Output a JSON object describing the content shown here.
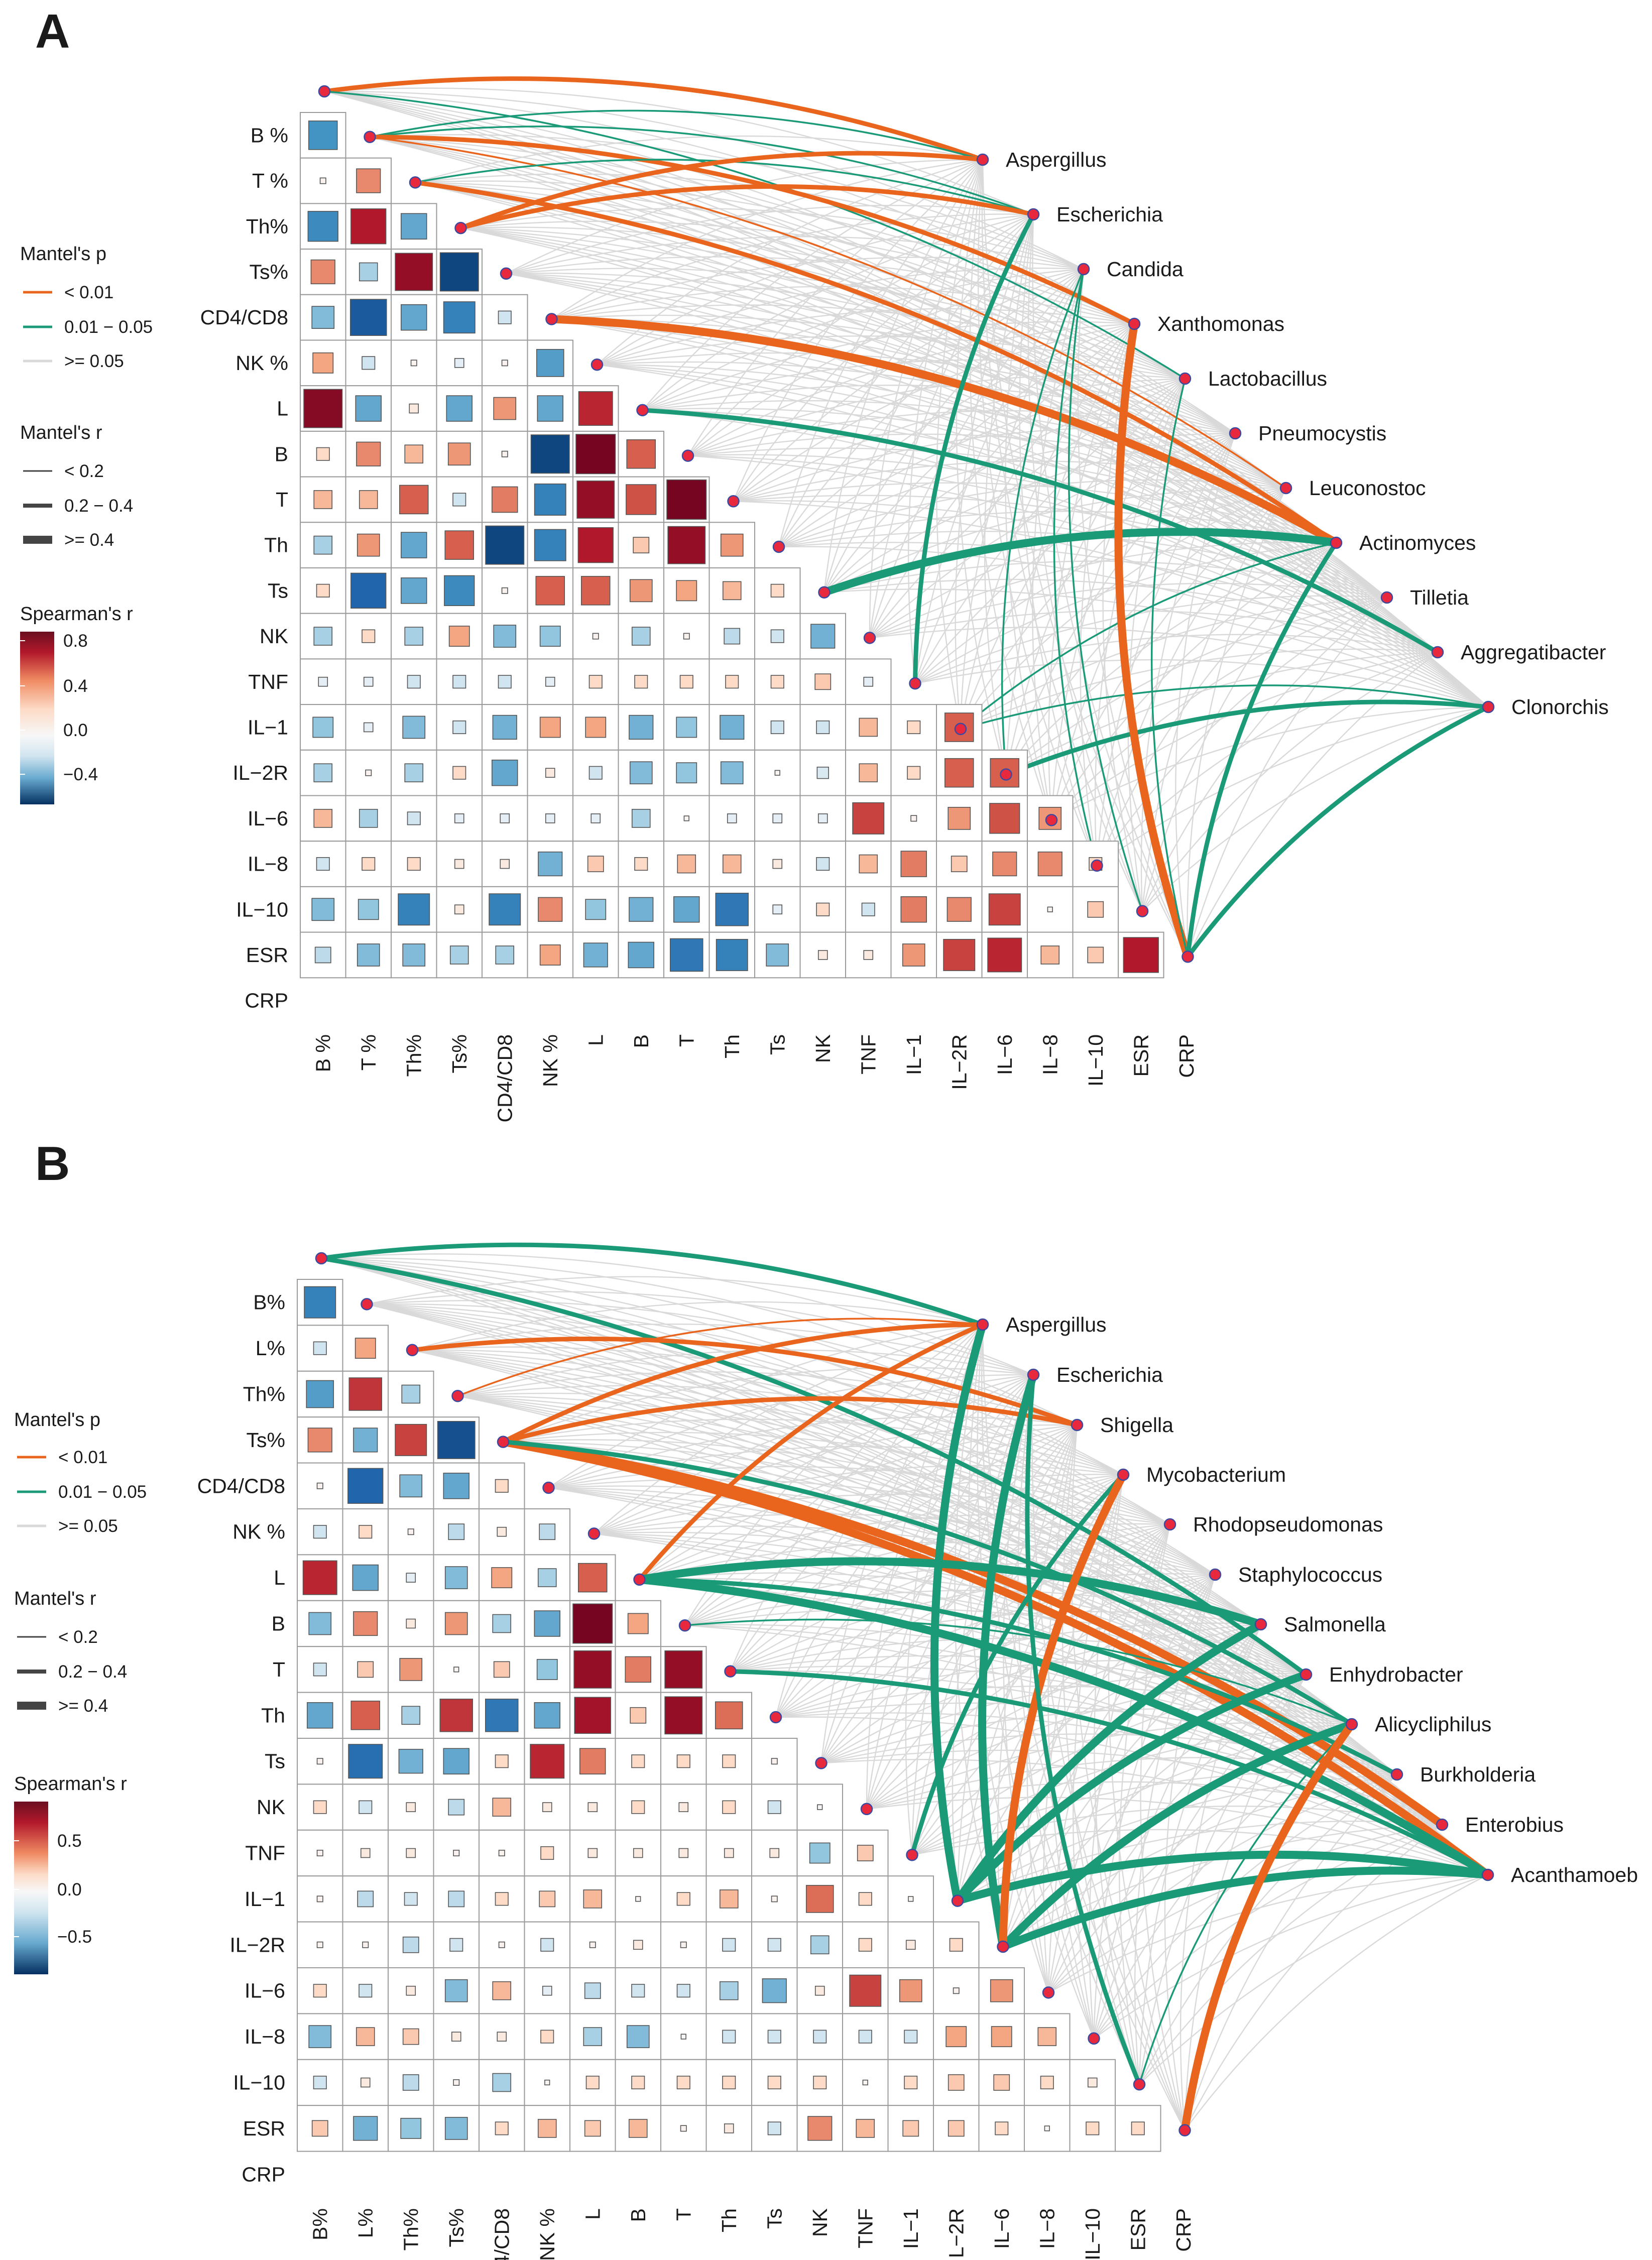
{
  "chart_data": [
    {
      "type": "heatmap",
      "panel": "A",
      "variables": [
        "B %",
        "T %",
        "Th%",
        "Ts%",
        "CD4/CD8",
        "NK %",
        "L",
        "B",
        "T",
        "Th",
        "Ts",
        "NK",
        "TNF",
        "IL−1",
        "IL−2R",
        "IL−6",
        "IL−8",
        "IL−10",
        "ESR",
        "CRP"
      ],
      "taxa": [
        "Aspergillus",
        "Escherichia",
        "Candida",
        "Xanthomonas",
        "Lactobacillus",
        "Pneumocystis",
        "Leuconostoc",
        "Actinomyces",
        "Tilletia",
        "Aggregatibacter",
        "Clonorchis"
      ],
      "color_scale": {
        "title": "Spearman's r",
        "ticks": [
          0.8,
          0.4,
          0.0,
          -0.4
        ],
        "tick_labels": [
          "0.8",
          "0.4",
          "0.0",
          "−0.4"
        ],
        "range": [
          -0.55,
          0.85
        ]
      },
      "correlation_matrix": [
        [
          -0.5
        ],
        [
          0.02,
          0.35
        ],
        [
          -0.55,
          0.75,
          -0.4
        ],
        [
          0.35,
          -0.2,
          0.85,
          -0.9
        ],
        [
          -0.3,
          -0.8,
          -0.4,
          -0.6,
          -0.1
        ],
        [
          0.25,
          -0.1,
          0.02,
          -0.05,
          0.02,
          -0.45
        ],
        [
          0.9,
          -0.4,
          0.05,
          -0.4,
          0.3,
          -0.4,
          0.7
        ],
        [
          0.1,
          0.35,
          0.2,
          0.3,
          0.02,
          -0.9,
          0.95,
          0.5
        ],
        [
          0.2,
          0.2,
          0.5,
          -0.1,
          0.4,
          -0.6,
          0.85,
          0.55,
          0.95
        ],
        [
          -0.2,
          0.3,
          -0.4,
          0.5,
          -0.9,
          -0.6,
          0.75,
          0.15,
          0.85,
          0.3
        ],
        [
          0.1,
          -0.75,
          -0.4,
          -0.55,
          0.02,
          0.5,
          0.5,
          0.3,
          0.25,
          0.2,
          0.1
        ],
        [
          -0.2,
          0.1,
          -0.2,
          0.25,
          -0.3,
          -0.25,
          0.02,
          -0.2,
          0.02,
          -0.15,
          -0.1,
          -0.35
        ],
        [
          -0.05,
          -0.05,
          -0.1,
          -0.1,
          -0.1,
          -0.05,
          0.1,
          0.1,
          0.1,
          0.1,
          0.1,
          0.15,
          -0.05
        ],
        [
          -0.25,
          -0.05,
          -0.3,
          -0.1,
          -0.35,
          0.25,
          0.25,
          -0.35,
          -0.25,
          -0.35,
          -0.1,
          -0.1,
          0.2,
          0.1,
          0.5
        ],
        [
          -0.2,
          0.02,
          -0.2,
          0.1,
          -0.4,
          0.05,
          -0.1,
          -0.3,
          -0.25,
          -0.3,
          0.01,
          -0.08,
          0.2,
          0.1,
          0.5,
          0.5
        ],
        [
          0.2,
          -0.2,
          -0.1,
          -0.05,
          -0.05,
          -0.05,
          -0.05,
          -0.2,
          0.01,
          -0.05,
          -0.05,
          -0.05,
          0.6,
          0.02,
          0.3,
          0.55,
          0.3
        ],
        [
          -0.1,
          0.1,
          0.1,
          0.05,
          0.05,
          -0.35,
          0.15,
          0.1,
          0.2,
          0.2,
          0.05,
          -0.1,
          0.2,
          0.4,
          0.15,
          0.35,
          0.35,
          0.1
        ],
        [
          -0.3,
          -0.25,
          -0.6,
          0.05,
          -0.6,
          0.35,
          -0.25,
          -0.35,
          -0.4,
          -0.65,
          -0.05,
          0.1,
          -0.1,
          0.4,
          0.35,
          0.6,
          0.01,
          0.15
        ],
        [
          -0.15,
          -0.3,
          -0.3,
          -0.2,
          -0.2,
          0.25,
          -0.35,
          -0.4,
          -0.65,
          -0.6,
          -0.3,
          0.05,
          0.05,
          0.3,
          0.6,
          0.7,
          0.2,
          0.15,
          0.75
        ]
      ],
      "edges": [
        {
          "variable": "B %",
          "taxon": "Aspergillus",
          "p": "<0.01",
          "r": "0.2-0.4"
        },
        {
          "variable": "B %",
          "taxon": "Lactobacillus",
          "p": "0.01-0.05",
          "r": "<0.2"
        },
        {
          "variable": "T %",
          "taxon": "Aspergillus",
          "p": "0.01-0.05",
          "r": "<0.2"
        },
        {
          "variable": "T %",
          "taxon": "Escherichia",
          "p": "0.01-0.05",
          "r": "<0.2"
        },
        {
          "variable": "T %",
          "taxon": "Xanthomonas",
          "p": "<0.01",
          "r": "0.2-0.4"
        },
        {
          "variable": "T %",
          "taxon": "Leuconostoc",
          "p": "<0.01",
          "r": "<0.2"
        },
        {
          "variable": "Th%",
          "taxon": "Escherichia",
          "p": "0.01-0.05",
          "r": "<0.2"
        },
        {
          "variable": "Th%",
          "taxon": "Actinomyces",
          "p": "<0.01",
          "r": "0.2-0.4"
        },
        {
          "variable": "Ts%",
          "taxon": "Aspergillus",
          "p": "<0.01",
          "r": "0.2-0.4"
        },
        {
          "variable": "Ts%",
          "taxon": "Escherichia",
          "p": "<0.01",
          "r": "0.2-0.4"
        },
        {
          "variable": "NK %",
          "taxon": "Actinomyces",
          "p": "<0.01",
          "r": ">=0.4"
        },
        {
          "variable": "B",
          "taxon": "Aggregatibacter",
          "p": "0.01-0.05",
          "r": "0.2-0.4"
        },
        {
          "variable": "NK",
          "taxon": "Actinomyces",
          "p": "0.01-0.05",
          "r": ">=0.4"
        },
        {
          "variable": "IL−1",
          "taxon": "Escherichia",
          "p": "0.01-0.05",
          "r": "0.2-0.4"
        },
        {
          "variable": "IL−2R",
          "taxon": "Actinomyces",
          "p": "0.01-0.05",
          "r": "<0.2"
        },
        {
          "variable": "IL−2R",
          "taxon": "Clonorchis",
          "p": "0.01-0.05",
          "r": "<0.2"
        },
        {
          "variable": "IL−6",
          "taxon": "Candida",
          "p": "0.01-0.05",
          "r": "<0.2"
        },
        {
          "variable": "IL−6",
          "taxon": "Clonorchis",
          "p": "0.01-0.05",
          "r": "0.2-0.4"
        },
        {
          "variable": "CRP",
          "taxon": "Xanthomonas",
          "p": "<0.01",
          "r": ">=0.4"
        },
        {
          "variable": "CRP",
          "taxon": "Clonorchis",
          "p": "0.01-0.05",
          "r": "0.2-0.4"
        },
        {
          "variable": "CRP",
          "taxon": "Actinomyces",
          "p": "0.01-0.05",
          "r": "0.2-0.4"
        },
        {
          "variable": "CRP",
          "taxon": "Lactobacillus",
          "p": "0.01-0.05",
          "r": "<0.2"
        },
        {
          "variable": "ESR",
          "taxon": "Candida",
          "p": "0.01-0.05",
          "r": "<0.2"
        },
        {
          "variable": "IL−10",
          "taxon": "Candida",
          "p": "0.01-0.05",
          "r": "<0.2"
        }
      ]
    },
    {
      "type": "heatmap",
      "panel": "B",
      "variables": [
        "B%",
        "L%",
        "Th%",
        "Ts%",
        "CD4/CD8",
        "NK %",
        "L",
        "B",
        "T",
        "Th",
        "Ts",
        "NK",
        "TNF",
        "IL−1",
        "IL−2R",
        "IL−6",
        "IL−8",
        "IL−10",
        "ESR",
        "CRP"
      ],
      "taxa": [
        "Aspergillus",
        "Escherichia",
        "Shigella",
        "Mycobacterium",
        "Rhodopseudomonas",
        "Staphylococcus",
        "Salmonella",
        "Enhydrobacter",
        "Alicycliphilus",
        "Burkholderia",
        "Enterobius",
        "Acanthamoeb"
      ],
      "color_scale": {
        "title": "Spearman's r",
        "ticks": [
          0.5,
          0.0,
          -0.5
        ],
        "tick_labels": [
          "0.5",
          "0.0",
          "−0.5"
        ],
        "range": [
          -0.8,
          0.8
        ]
      },
      "correlation_matrix": [
        [
          -0.6
        ],
        [
          -0.1,
          0.25
        ],
        [
          -0.45,
          0.65,
          -0.2
        ],
        [
          0.35,
          -0.35,
          0.6,
          -0.85
        ],
        [
          0.02,
          -0.75,
          -0.3,
          -0.4,
          0.1
        ],
        [
          -0.1,
          0.1,
          0.02,
          -0.15,
          0.05,
          -0.15
        ],
        [
          0.7,
          -0.4,
          -0.05,
          -0.3,
          0.25,
          -0.2,
          0.5
        ],
        [
          -0.3,
          0.35,
          0.05,
          0.3,
          -0.2,
          -0.4,
          0.95,
          0.25
        ],
        [
          -0.1,
          0.15,
          0.3,
          0.01,
          0.15,
          -0.25,
          0.85,
          0.4,
          0.85
        ],
        [
          -0.4,
          0.5,
          -0.2,
          0.65,
          -0.65,
          -0.4,
          0.8,
          0.15,
          0.85,
          0.45
        ],
        [
          0.02,
          -0.7,
          -0.35,
          -0.4,
          0.1,
          0.7,
          0.4,
          0.1,
          0.1,
          0.1,
          0.02
        ],
        [
          0.1,
          -0.1,
          0.05,
          -0.15,
          0.2,
          0.05,
          0.05,
          0.1,
          0.05,
          0.1,
          -0.1,
          0.01
        ],
        [
          0.02,
          0.05,
          0.05,
          0.02,
          0.02,
          0.1,
          0.05,
          0.05,
          0.05,
          0.05,
          0.05,
          -0.25,
          0.15
        ],
        [
          0.02,
          -0.15,
          -0.1,
          -0.15,
          0.1,
          0.15,
          0.2,
          0.01,
          0.1,
          0.2,
          0.02,
          0.45,
          0.1,
          0.01
        ],
        [
          0.02,
          0.02,
          -0.15,
          -0.1,
          0.02,
          -0.1,
          0.02,
          0.05,
          0.02,
          -0.1,
          -0.1,
          -0.2,
          0.1,
          0.05,
          0.1
        ],
        [
          0.1,
          -0.1,
          0.05,
          -0.3,
          0.2,
          -0.05,
          -0.15,
          -0.1,
          -0.1,
          -0.2,
          -0.35,
          0.05,
          0.6,
          0.3,
          0.02,
          0.3
        ],
        [
          -0.3,
          0.2,
          0.15,
          0.05,
          0.05,
          0.1,
          -0.2,
          -0.3,
          0.01,
          -0.1,
          -0.1,
          -0.1,
          -0.1,
          -0.1,
          0.25,
          0.25,
          0.2
        ],
        [
          -0.1,
          0.05,
          -0.15,
          0.02,
          -0.2,
          0.01,
          0.1,
          0.1,
          0.1,
          0.1,
          0.1,
          0.1,
          0.01,
          0.1,
          0.15,
          0.15,
          0.1,
          0.05
        ],
        [
          0.15,
          -0.35,
          -0.25,
          -0.3,
          0.1,
          0.2,
          0.15,
          0.2,
          0.02,
          0.05,
          -0.1,
          0.35,
          0.2,
          0.15,
          0.15,
          0.1,
          0.01,
          0.1,
          0.1
        ]
      ],
      "edges": [
        {
          "variable": "B%",
          "taxon": "Aspergillus",
          "p": "0.01-0.05",
          "r": "0.2-0.4"
        },
        {
          "variable": "B%",
          "taxon": "Enhydrobacter",
          "p": "0.01-0.05",
          "r": "0.2-0.4"
        },
        {
          "variable": "Ts%",
          "taxon": "Aspergillus",
          "p": "<0.01",
          "r": "<0.2"
        },
        {
          "variable": "Th%",
          "taxon": "Shigella",
          "p": "<0.01",
          "r": "0.2-0.4"
        },
        {
          "variable": "CD4/CD8",
          "taxon": "Aspergillus",
          "p": "<0.01",
          "r": "0.2-0.4"
        },
        {
          "variable": "CD4/CD8",
          "taxon": "Shigella",
          "p": "<0.01",
          "r": "0.2-0.4"
        },
        {
          "variable": "CD4/CD8",
          "taxon": "Enterobius",
          "p": "<0.01",
          "r": ">=0.4"
        },
        {
          "variable": "CD4/CD8",
          "taxon": "Acanthamoeb",
          "p": "<0.01",
          "r": ">=0.4"
        },
        {
          "variable": "CD4/CD8",
          "taxon": "Alicycliphilus",
          "p": "0.01-0.05",
          "r": "0.2-0.4"
        },
        {
          "variable": "B",
          "taxon": "Aspergillus",
          "p": "<0.01",
          "r": "0.2-0.4"
        },
        {
          "variable": "B",
          "taxon": "Salmonella",
          "p": "0.01-0.05",
          "r": ">=0.4"
        },
        {
          "variable": "B",
          "taxon": "Acanthamoeb",
          "p": "0.01-0.05",
          "r": ">=0.4"
        },
        {
          "variable": "B",
          "taxon": "Burkholderia",
          "p": "0.01-0.05",
          "r": "0.2-0.4"
        },
        {
          "variable": "T",
          "taxon": "Alicycliphilus",
          "p": "0.01-0.05",
          "r": "<0.2"
        },
        {
          "variable": "Th",
          "taxon": "Acanthamoeb",
          "p": "0.01-0.05",
          "r": "0.2-0.4"
        },
        {
          "variable": "IL−1",
          "taxon": "Mycobacterium",
          "p": "0.01-0.05",
          "r": "0.2-0.4"
        },
        {
          "variable": "IL−2R",
          "taxon": "Aspergillus",
          "p": "0.01-0.05",
          "r": ">=0.4"
        },
        {
          "variable": "IL−2R",
          "taxon": "Salmonella",
          "p": "0.01-0.05",
          "r": ">=0.4"
        },
        {
          "variable": "IL−2R",
          "taxon": "Enhydrobacter",
          "p": "0.01-0.05",
          "r": ">=0.4"
        },
        {
          "variable": "IL−2R",
          "taxon": "Acanthamoeb",
          "p": "0.01-0.05",
          "r": ">=0.4"
        },
        {
          "variable": "IL−6",
          "taxon": "Escherichia",
          "p": "0.01-0.05",
          "r": ">=0.4"
        },
        {
          "variable": "IL−6",
          "taxon": "Alicycliphilus",
          "p": "0.01-0.05",
          "r": ">=0.4"
        },
        {
          "variable": "IL−6",
          "taxon": "Acanthamoeb",
          "p": "0.01-0.05",
          "r": ">=0.4"
        },
        {
          "variable": "IL−6",
          "taxon": "Mycobacterium",
          "p": "<0.01",
          "r": ">=0.4"
        },
        {
          "variable": "ESR",
          "taxon": "Escherichia",
          "p": "0.01-0.05",
          "r": "0.2-0.4"
        },
        {
          "variable": "ESR",
          "taxon": "Alicycliphilus",
          "p": "0.01-0.05",
          "r": "<0.2"
        },
        {
          "variable": "CRP",
          "taxon": "Alicycliphilus",
          "p": "<0.01",
          "r": ">=0.4"
        }
      ]
    }
  ],
  "legend": {
    "mantel_p_title": "Mantel's p",
    "mantel_p_items": [
      "< 0.01",
      "0.01 − 0.05",
      ">= 0.05"
    ],
    "mantel_r_title": "Mantel's r",
    "mantel_r_items": [
      "< 0.2",
      "0.2 − 0.4",
      ">= 0.4"
    ],
    "spearman_title": "Spearman's r"
  },
  "colors": {
    "p_lt_001": "#e9641c",
    "p_001_005": "#1b9a78",
    "p_ge_005": "#d9d9d9",
    "node": "#e8283c",
    "node_stroke": "#3b4aa0",
    "grid": "#9a9a9a",
    "neg": "#0b4f94",
    "pos": "#7b0b1c"
  }
}
